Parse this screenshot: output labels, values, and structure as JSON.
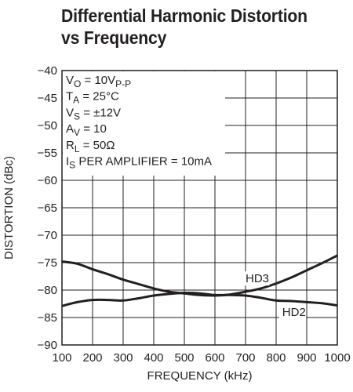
{
  "title_line1": "Differential Harmonic Distortion",
  "title_line2": "vs Frequency",
  "chart_data": {
    "type": "line",
    "title": "Differential Harmonic Distortion vs Frequency",
    "xlabel": "FREQUENCY (kHz)",
    "ylabel": "DISTORTION (dBc)",
    "xlim": [
      100,
      1000
    ],
    "ylim": [
      -90,
      -40
    ],
    "xticks": [
      100,
      200,
      300,
      400,
      500,
      600,
      700,
      800,
      900,
      1000
    ],
    "yticks": [
      -40,
      -45,
      -50,
      -55,
      -60,
      -65,
      -70,
      -75,
      -80,
      -85,
      -90
    ],
    "grid": true,
    "conditions": [
      {
        "main": "V",
        "sub": "O",
        "rest": " = 10V",
        "sub2": "P-P"
      },
      {
        "main": "T",
        "sub": "A",
        "rest": " = 25°C",
        "sub2": ""
      },
      {
        "main": "V",
        "sub": "S",
        "rest": " = ±12V",
        "sub2": ""
      },
      {
        "main": "A",
        "sub": "V",
        "rest": " = 10",
        "sub2": ""
      },
      {
        "main": "R",
        "sub": "L",
        "rest": " = 50Ω",
        "sub2": ""
      },
      {
        "main": "I",
        "sub": "S",
        "rest": " PER AMPLIFIER = 10mA",
        "sub2": ""
      }
    ],
    "series": [
      {
        "name": "HD3",
        "label_at": [
          700,
          -78.6
        ],
        "x": [
          100,
          150,
          200,
          250,
          300,
          350,
          400,
          450,
          500,
          550,
          600,
          650,
          700,
          750,
          800,
          850,
          900,
          950,
          1000
        ],
        "y": [
          -74.8,
          -75.2,
          -76.2,
          -77.1,
          -78.1,
          -78.9,
          -79.7,
          -80.3,
          -80.6,
          -80.9,
          -81.0,
          -80.8,
          -80.3,
          -79.7,
          -78.8,
          -77.7,
          -76.4,
          -75.1,
          -73.7
        ]
      },
      {
        "name": "HD2",
        "label_at": [
          820,
          -84.7
        ],
        "x": [
          100,
          150,
          200,
          250,
          300,
          350,
          400,
          450,
          500,
          550,
          600,
          650,
          700,
          750,
          800,
          850,
          900,
          950,
          1000
        ],
        "y": [
          -82.9,
          -82.2,
          -81.8,
          -81.8,
          -81.9,
          -81.5,
          -81.0,
          -80.7,
          -80.5,
          -80.6,
          -80.9,
          -80.9,
          -81.0,
          -81.4,
          -81.9,
          -82.0,
          -82.2,
          -82.4,
          -82.8
        ]
      }
    ]
  }
}
